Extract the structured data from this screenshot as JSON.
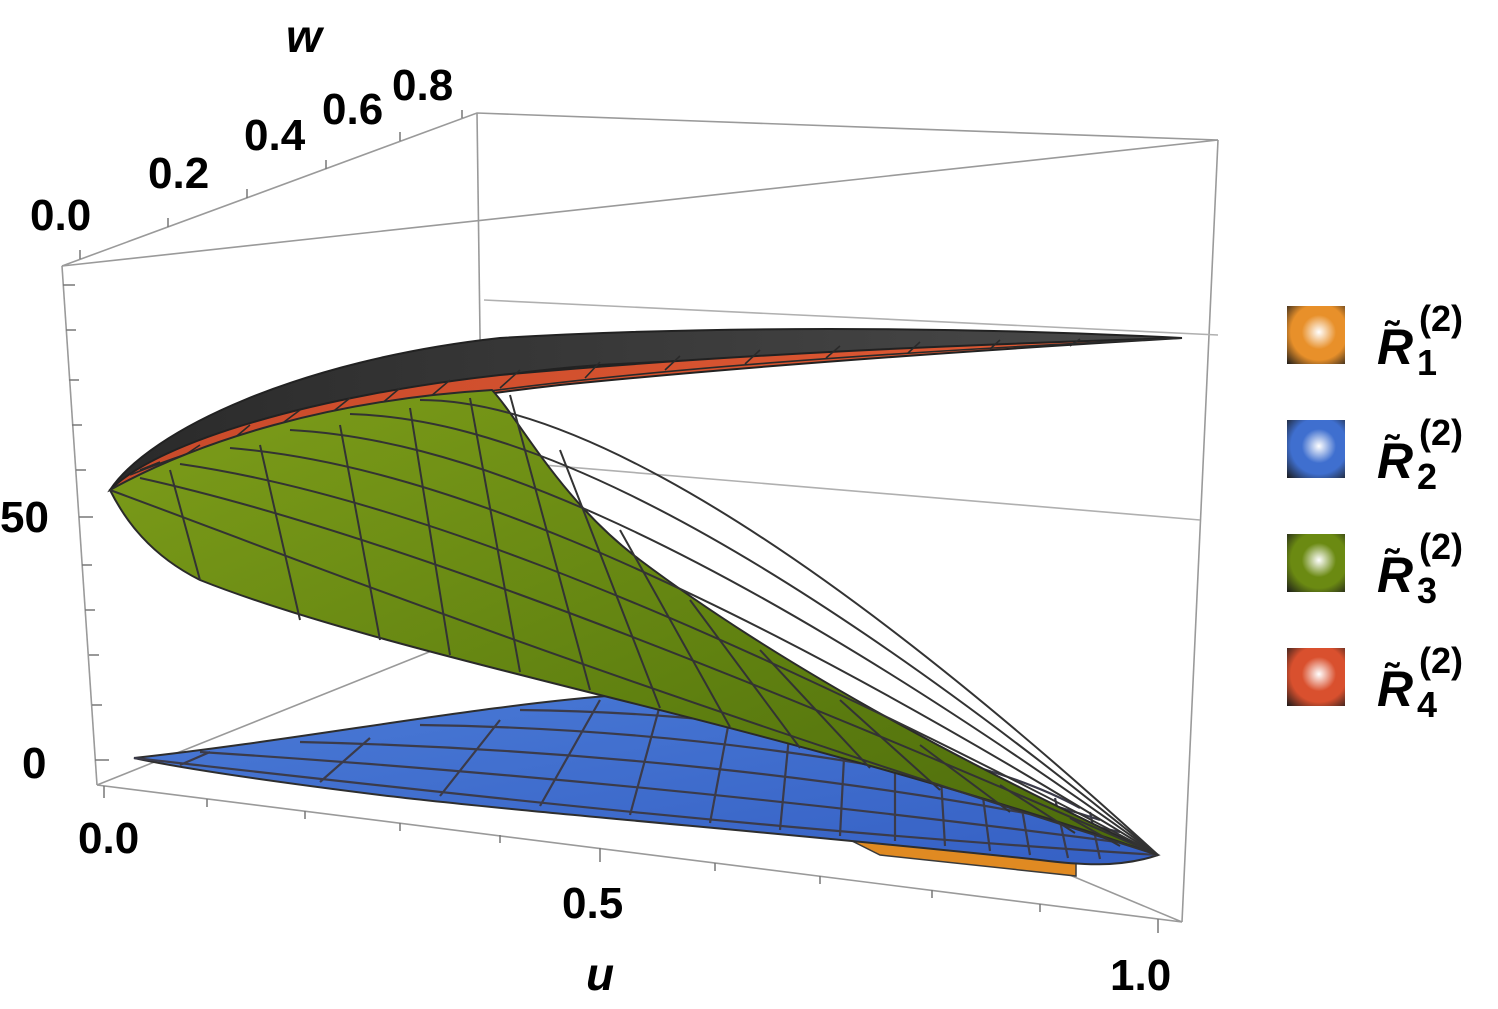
{
  "chart_data": {
    "type": "surface3d",
    "axes": {
      "u": {
        "label": "u",
        "ticks": [
          "0.0",
          "0.5",
          "1.0"
        ],
        "range": [
          0,
          1
        ]
      },
      "w": {
        "label": "w",
        "ticks": [
          "0.0",
          "0.2",
          "0.4",
          "0.6",
          "0.8"
        ],
        "range": [
          0,
          0.9
        ]
      },
      "z": {
        "label": "",
        "ticks": [
          "0",
          "50"
        ],
        "range": [
          -10,
          110
        ]
      }
    },
    "legend_position": "right",
    "series": [
      {
        "name_base": "R",
        "name_sub": "1",
        "name_sup": "(2)",
        "color": "#e8902a",
        "surface_shape": "thin sliver near z≈-3, visible below blue surface"
      },
      {
        "name_base": "R",
        "name_sub": "2",
        "name_sup": "(2)",
        "color": "#3f6fcf",
        "surface_shape": "wedge near z≈0, widening with u"
      },
      {
        "name_base": "R",
        "name_sub": "3",
        "name_sup": "(2)",
        "color": "#6b8a12",
        "surface_shape": "fan from z≈0 at u=1 rising to z≈55 at u=0"
      },
      {
        "name_base": "R",
        "name_sub": "4",
        "name_sup": "(2)",
        "color": "#d9502e",
        "surface_shape": "thin band near z≈80–100, upper sheet"
      }
    ],
    "box": true,
    "grid": false
  }
}
